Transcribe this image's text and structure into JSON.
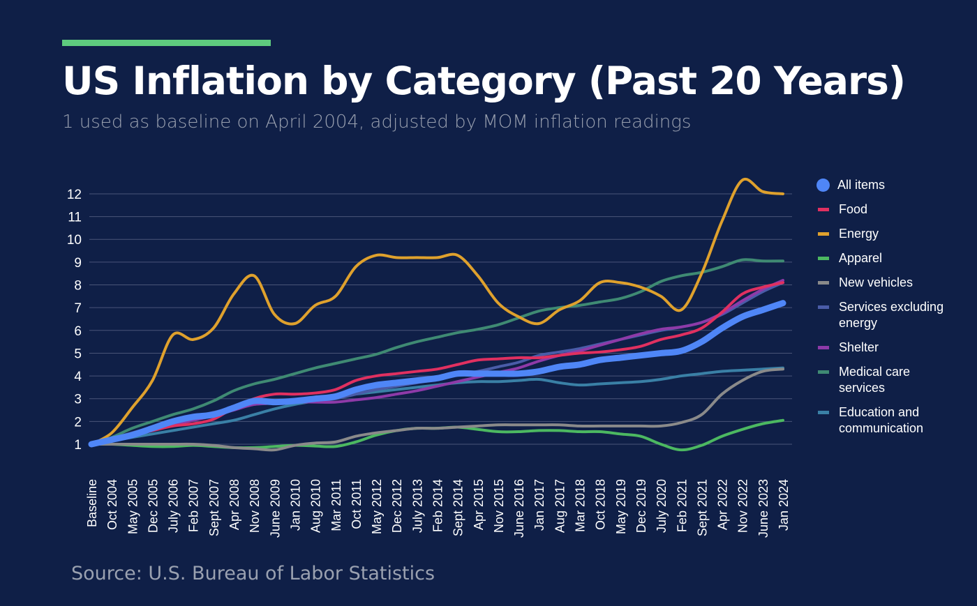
{
  "header": {
    "title": "US Inflation by Category (Past 20 Years)",
    "subtitle": "1 used as baseline on April 2004, adjusted by MOM inflation readings",
    "accent_color": "#5ecb7e"
  },
  "footer": {
    "source": "Source: U.S. Bureau of Labor Statistics"
  },
  "chart_data": {
    "type": "line",
    "title": "US Inflation by Category (Past 20 Years)",
    "ylim": [
      1,
      12
    ],
    "yticks": [
      1,
      2,
      3,
      4,
      5,
      6,
      7,
      8,
      9,
      10,
      11,
      12
    ],
    "grid": true,
    "legend_position": "right",
    "categories": [
      "Baseline",
      "Oct 2004",
      "May 2005",
      "Dec 2005",
      "July 2006",
      "Feb 2007",
      "Sept 2007",
      "Apr 2008",
      "Nov 2008",
      "June 2009",
      "Jan 2010",
      "Aug 2010",
      "Mar 2011",
      "Oct 2011",
      "May 2012",
      "Dec 2012",
      "July 2013",
      "Feb 2014",
      "Sept 2014",
      "Apr 2015",
      "Nov 2015",
      "June 2016",
      "Jan 2017",
      "Aug 2017",
      "Mar 2018",
      "Oct 2018",
      "May 2019",
      "Dec 2019",
      "July 2020",
      "Feb 2021",
      "Sept 2021",
      "Apr 2022",
      "Nov 2022",
      "June 2023",
      "Jan 2024"
    ],
    "series": [
      {
        "name": "All items",
        "color": "#4f86f7",
        "marker": "circle",
        "values": [
          1.0,
          1.2,
          1.4,
          1.7,
          2.0,
          2.2,
          2.3,
          2.6,
          2.9,
          2.85,
          2.9,
          3.0,
          3.1,
          3.4,
          3.6,
          3.7,
          3.8,
          3.9,
          4.1,
          4.1,
          4.1,
          4.1,
          4.2,
          4.4,
          4.5,
          4.7,
          4.8,
          4.9,
          5.0,
          5.1,
          5.5,
          6.1,
          6.6,
          6.9,
          7.2
        ]
      },
      {
        "name": "Food",
        "color": "#e03060",
        "values": [
          1.0,
          1.2,
          1.4,
          1.6,
          1.8,
          1.9,
          2.1,
          2.6,
          3.0,
          3.2,
          3.2,
          3.25,
          3.4,
          3.8,
          4.0,
          4.1,
          4.2,
          4.3,
          4.5,
          4.7,
          4.75,
          4.8,
          4.8,
          4.9,
          5.0,
          5.05,
          5.15,
          5.3,
          5.6,
          5.8,
          6.1,
          6.8,
          7.6,
          7.9,
          8.1
        ]
      },
      {
        "name": "Energy",
        "color": "#dfa12d",
        "values": [
          1.0,
          1.5,
          2.6,
          3.8,
          5.8,
          5.6,
          6.1,
          7.6,
          8.4,
          6.7,
          6.3,
          7.1,
          7.5,
          8.8,
          9.3,
          9.2,
          9.2,
          9.2,
          9.3,
          8.4,
          7.2,
          6.6,
          6.3,
          6.9,
          7.3,
          8.1,
          8.1,
          7.9,
          7.5,
          6.9,
          8.5,
          10.8,
          12.6,
          12.1,
          12.0
        ]
      },
      {
        "name": "Apparel",
        "color": "#4cb861",
        "values": [
          1.0,
          1.0,
          0.95,
          0.9,
          0.9,
          0.95,
          0.9,
          0.85,
          0.85,
          0.9,
          0.95,
          0.92,
          0.9,
          1.1,
          1.4,
          1.6,
          1.7,
          1.7,
          1.75,
          1.65,
          1.55,
          1.55,
          1.6,
          1.6,
          1.55,
          1.55,
          1.45,
          1.35,
          1.0,
          0.75,
          0.95,
          1.35,
          1.65,
          1.9,
          2.05
        ]
      },
      {
        "name": "New vehicles",
        "color": "#8a8a8a",
        "values": [
          1.0,
          1.0,
          1.0,
          1.0,
          1.0,
          1.0,
          0.95,
          0.85,
          0.8,
          0.75,
          0.95,
          1.05,
          1.1,
          1.35,
          1.5,
          1.6,
          1.7,
          1.7,
          1.75,
          1.8,
          1.85,
          1.85,
          1.85,
          1.85,
          1.8,
          1.8,
          1.8,
          1.8,
          1.8,
          1.95,
          2.3,
          3.2,
          3.8,
          4.2,
          4.3
        ]
      },
      {
        "name": "Services excluding energy",
        "color": "#4a5ca8",
        "values": [
          1.0,
          1.25,
          1.5,
          1.75,
          2.0,
          2.2,
          2.4,
          2.6,
          2.75,
          2.8,
          2.85,
          2.9,
          3.0,
          3.2,
          3.4,
          3.55,
          3.7,
          3.85,
          4.05,
          4.2,
          4.4,
          4.6,
          4.9,
          5.05,
          5.2,
          5.4,
          5.6,
          5.8,
          6.0,
          6.15,
          6.35,
          6.7,
          7.2,
          7.7,
          8.1
        ]
      },
      {
        "name": "Shelter",
        "color": "#8e3aa8",
        "values": [
          1.0,
          1.2,
          1.4,
          1.6,
          1.85,
          2.05,
          2.25,
          2.5,
          2.75,
          2.8,
          2.85,
          2.85,
          2.85,
          2.95,
          3.05,
          3.2,
          3.35,
          3.55,
          3.75,
          3.95,
          4.15,
          4.35,
          4.65,
          4.9,
          5.1,
          5.35,
          5.6,
          5.85,
          6.05,
          6.15,
          6.35,
          6.75,
          7.3,
          7.8,
          8.2
        ]
      },
      {
        "name": "Medical care services",
        "color": "#3f8a73",
        "values": [
          1.0,
          1.3,
          1.7,
          2.0,
          2.3,
          2.55,
          2.9,
          3.35,
          3.65,
          3.85,
          4.1,
          4.35,
          4.55,
          4.75,
          4.95,
          5.25,
          5.5,
          5.7,
          5.9,
          6.05,
          6.25,
          6.55,
          6.85,
          7.0,
          7.1,
          7.25,
          7.4,
          7.7,
          8.15,
          8.4,
          8.55,
          8.8,
          9.1,
          9.05,
          9.05
        ]
      },
      {
        "name": "Education and communication",
        "color": "#3a80a6",
        "values": [
          1.0,
          1.15,
          1.3,
          1.45,
          1.6,
          1.75,
          1.9,
          2.05,
          2.3,
          2.55,
          2.75,
          2.9,
          3.05,
          3.2,
          3.3,
          3.4,
          3.5,
          3.6,
          3.7,
          3.75,
          3.75,
          3.8,
          3.85,
          3.7,
          3.6,
          3.65,
          3.7,
          3.75,
          3.85,
          4.0,
          4.1,
          4.2,
          4.25,
          4.3,
          4.35
        ]
      }
    ]
  }
}
